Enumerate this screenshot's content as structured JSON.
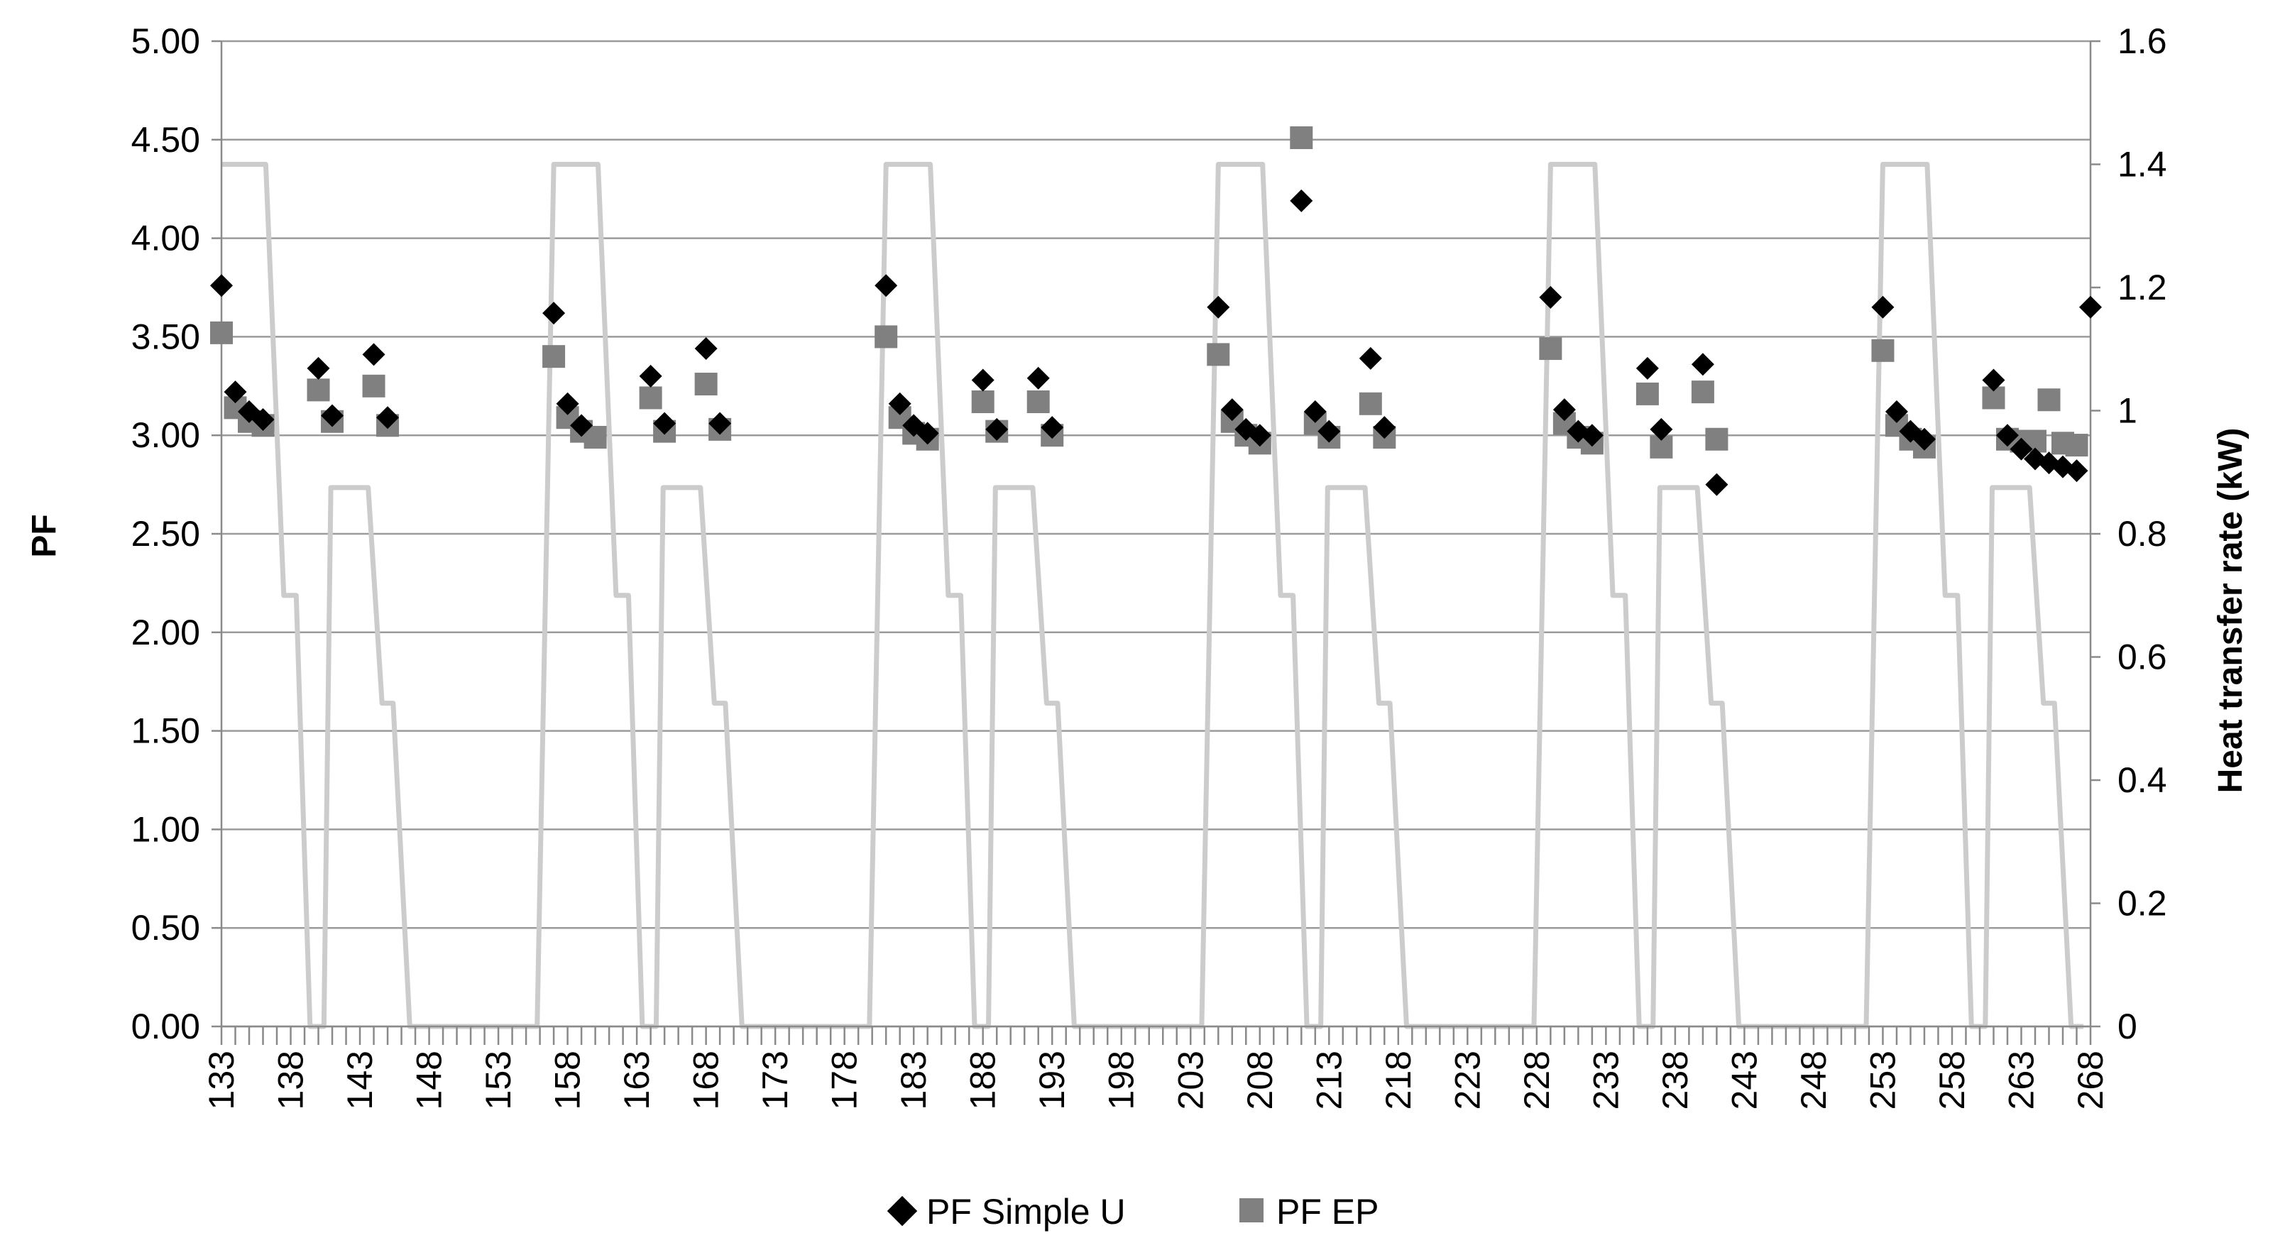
{
  "chart_data": {
    "type": "scatter",
    "title": "",
    "xlabel": "",
    "ylabel": "PF",
    "y2label": "Heat transfer rate  (kW)",
    "xlim": [
      133,
      268
    ],
    "ylim": [
      0,
      5
    ],
    "y2lim": [
      0,
      1.6
    ],
    "x_ticks": [
      133,
      138,
      143,
      148,
      153,
      158,
      163,
      168,
      173,
      178,
      183,
      188,
      193,
      198,
      203,
      208,
      213,
      218,
      223,
      228,
      233,
      238,
      243,
      248,
      253,
      258,
      263,
      268
    ],
    "y_ticks": [
      "0.00",
      "0.50",
      "1.00",
      "1.50",
      "2.00",
      "2.50",
      "3.00",
      "3.50",
      "4.00",
      "4.50",
      "5.00"
    ],
    "y2_ticks": [
      "0",
      "0.2",
      "0.4",
      "0.6",
      "0.8",
      "1",
      "1.2",
      "1.4",
      "1.6"
    ],
    "grid": true,
    "legend_position": "bottom",
    "series": [
      {
        "name": "PF Simple U",
        "marker": "diamond",
        "color": "#000000",
        "axis": "left",
        "points": [
          [
            133,
            3.76
          ],
          [
            134,
            3.22
          ],
          [
            135,
            3.12
          ],
          [
            136,
            3.08
          ],
          [
            140,
            3.34
          ],
          [
            141,
            3.1
          ],
          [
            144,
            3.41
          ],
          [
            145,
            3.09
          ],
          [
            157,
            3.62
          ],
          [
            158,
            3.16
          ],
          [
            159,
            3.05
          ],
          [
            164,
            3.3
          ],
          [
            165,
            3.06
          ],
          [
            168,
            3.44
          ],
          [
            169,
            3.06
          ],
          [
            181,
            3.76
          ],
          [
            182,
            3.16
          ],
          [
            183,
            3.05
          ],
          [
            184,
            3.01
          ],
          [
            188,
            3.28
          ],
          [
            189,
            3.03
          ],
          [
            192,
            3.29
          ],
          [
            193,
            3.04
          ],
          [
            205,
            3.65
          ],
          [
            206,
            3.13
          ],
          [
            207,
            3.03
          ],
          [
            208,
            3.0
          ],
          [
            211,
            4.19
          ],
          [
            212,
            3.12
          ],
          [
            213,
            3.02
          ],
          [
            216,
            3.39
          ],
          [
            217,
            3.04
          ],
          [
            229,
            3.7
          ],
          [
            230,
            3.13
          ],
          [
            231,
            3.02
          ],
          [
            232,
            3.0
          ],
          [
            236,
            3.34
          ],
          [
            237,
            3.03
          ],
          [
            240,
            3.36
          ],
          [
            241,
            2.75
          ],
          [
            253,
            3.65
          ],
          [
            254,
            3.12
          ],
          [
            255,
            3.02
          ],
          [
            256,
            2.98
          ],
          [
            261,
            3.28
          ],
          [
            262,
            3.0
          ],
          [
            263,
            2.93
          ],
          [
            264,
            2.88
          ],
          [
            265,
            2.86
          ],
          [
            266,
            2.84
          ],
          [
            267,
            2.82
          ],
          [
            268,
            3.65
          ]
        ]
      },
      {
        "name": "PF EP",
        "marker": "square",
        "color": "#808080",
        "axis": "left",
        "points": [
          [
            133,
            3.52
          ],
          [
            134,
            3.14
          ],
          [
            135,
            3.07
          ],
          [
            136,
            3.05
          ],
          [
            140,
            3.23
          ],
          [
            141,
            3.07
          ],
          [
            144,
            3.25
          ],
          [
            145,
            3.05
          ],
          [
            157,
            3.4
          ],
          [
            158,
            3.09
          ],
          [
            159,
            3.02
          ],
          [
            160,
            2.99
          ],
          [
            164,
            3.19
          ],
          [
            165,
            3.02
          ],
          [
            168,
            3.26
          ],
          [
            169,
            3.03
          ],
          [
            181,
            3.5
          ],
          [
            182,
            3.09
          ],
          [
            183,
            3.01
          ],
          [
            184,
            2.98
          ],
          [
            188,
            3.17
          ],
          [
            189,
            3.02
          ],
          [
            192,
            3.17
          ],
          [
            193,
            3.0
          ],
          [
            205,
            3.41
          ],
          [
            206,
            3.07
          ],
          [
            207,
            3.0
          ],
          [
            208,
            2.96
          ],
          [
            211,
            4.51
          ],
          [
            212,
            3.06
          ],
          [
            213,
            2.99
          ],
          [
            216,
            3.16
          ],
          [
            217,
            2.99
          ],
          [
            229,
            3.44
          ],
          [
            230,
            3.06
          ],
          [
            231,
            2.99
          ],
          [
            232,
            2.96
          ],
          [
            236,
            3.21
          ],
          [
            237,
            2.94
          ],
          [
            240,
            3.22
          ],
          [
            241,
            2.98
          ],
          [
            253,
            3.43
          ],
          [
            254,
            3.05
          ],
          [
            255,
            2.98
          ],
          [
            256,
            2.94
          ],
          [
            261,
            3.19
          ],
          [
            262,
            2.98
          ],
          [
            263,
            2.97
          ],
          [
            264,
            2.97
          ],
          [
            265,
            3.18
          ],
          [
            266,
            2.96
          ],
          [
            267,
            2.95
          ]
        ]
      },
      {
        "name": "",
        "type": "line",
        "color": "#cccccc",
        "axis": "right",
        "points": [
          [
            133,
            1.4
          ],
          [
            136.2,
            1.4
          ],
          [
            137.5,
            0.7
          ],
          [
            138.4,
            0.7
          ],
          [
            139.4,
            0
          ],
          [
            140.4,
            0
          ],
          [
            140.9,
            0.875
          ],
          [
            143.6,
            0.875
          ],
          [
            144.6,
            0.525
          ],
          [
            145.4,
            0.525
          ],
          [
            146.6,
            0
          ],
          [
            155.8,
            0
          ],
          [
            157,
            1.4
          ],
          [
            160.2,
            1.4
          ],
          [
            161.5,
            0.7
          ],
          [
            162.4,
            0.7
          ],
          [
            163.4,
            0
          ],
          [
            164.4,
            0
          ],
          [
            164.9,
            0.875
          ],
          [
            167.6,
            0.875
          ],
          [
            168.6,
            0.525
          ],
          [
            169.4,
            0.525
          ],
          [
            170.6,
            0
          ],
          [
            179.8,
            0
          ],
          [
            181,
            1.4
          ],
          [
            184.2,
            1.4
          ],
          [
            185.5,
            0.7
          ],
          [
            186.4,
            0.7
          ],
          [
            187.4,
            0
          ],
          [
            188.4,
            0
          ],
          [
            188.9,
            0.875
          ],
          [
            191.6,
            0.875
          ],
          [
            192.6,
            0.525
          ],
          [
            193.4,
            0.525
          ],
          [
            194.6,
            0
          ],
          [
            203.8,
            0
          ],
          [
            205,
            1.4
          ],
          [
            208.2,
            1.4
          ],
          [
            209.5,
            0.7
          ],
          [
            210.4,
            0.7
          ],
          [
            211.4,
            0
          ],
          [
            212.4,
            0
          ],
          [
            212.9,
            0.875
          ],
          [
            215.6,
            0.875
          ],
          [
            216.6,
            0.525
          ],
          [
            217.4,
            0.525
          ],
          [
            218.6,
            0
          ],
          [
            227.8,
            0
          ],
          [
            229,
            1.4
          ],
          [
            232.2,
            1.4
          ],
          [
            233.5,
            0.7
          ],
          [
            234.4,
            0.7
          ],
          [
            235.4,
            0
          ],
          [
            236.4,
            0
          ],
          [
            236.9,
            0.875
          ],
          [
            239.6,
            0.875
          ],
          [
            240.6,
            0.525
          ],
          [
            241.4,
            0.525
          ],
          [
            242.6,
            0
          ],
          [
            251.8,
            0
          ],
          [
            253,
            1.4
          ],
          [
            256.2,
            1.4
          ],
          [
            257.5,
            0.7
          ],
          [
            258.4,
            0.7
          ],
          [
            259.4,
            0
          ],
          [
            260.4,
            0
          ],
          [
            260.9,
            0.875
          ],
          [
            263.6,
            0.875
          ],
          [
            264.6,
            0.525
          ],
          [
            265.4,
            0.525
          ],
          [
            266.6,
            0
          ],
          [
            267.5,
            0
          ]
        ]
      }
    ]
  }
}
